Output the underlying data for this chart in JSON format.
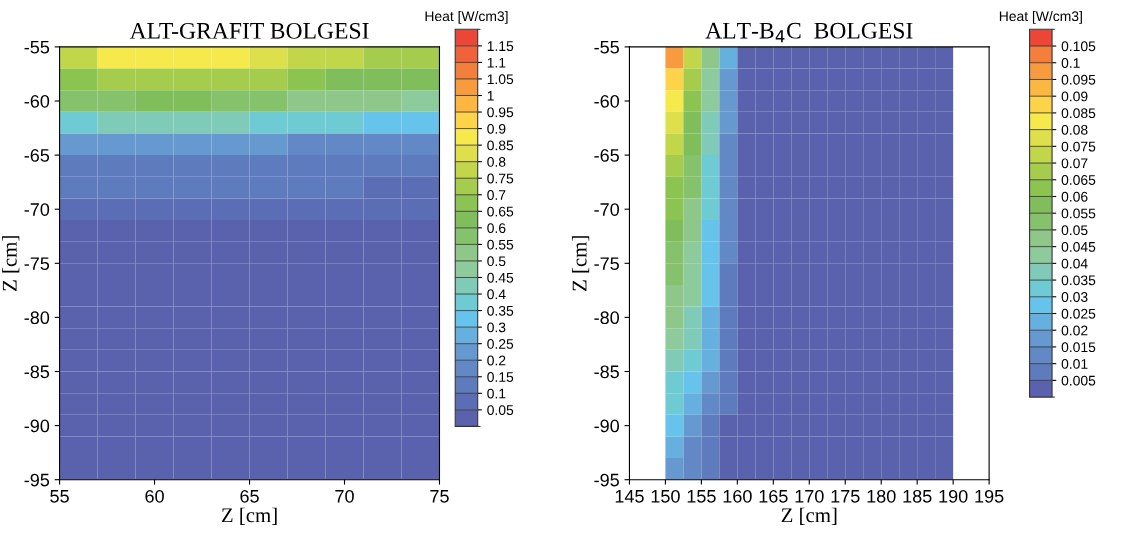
{
  "chart_data": [
    {
      "type": "heatmap",
      "title": "ALT-GRAFIT BOLGESI",
      "xlabel": "Z [cm]",
      "ylabel": "Z [cm]",
      "clabel": "Heat [W/cm3]",
      "x": [
        56,
        58,
        60,
        62,
        64,
        66,
        68,
        70,
        72,
        74
      ],
      "y": [
        -56,
        -58,
        -60,
        -62,
        -64,
        -66,
        -68,
        -70,
        -72,
        -74,
        -76,
        -78,
        -80,
        -82,
        -84,
        -86,
        -88,
        -90,
        -92,
        -94
      ],
      "xlim": [
        55,
        75
      ],
      "xticks": [
        55,
        60,
        65,
        70,
        75
      ],
      "ylim": [
        -95,
        -55
      ],
      "yticks": [
        -95,
        -90,
        -85,
        -80,
        -75,
        -70,
        -65,
        -60,
        -55
      ],
      "clim": [
        0,
        1.2
      ],
      "cticks": [
        0.05,
        0.1,
        0.15,
        0.2,
        0.25,
        0.3,
        0.35,
        0.4,
        0.45,
        0.5,
        0.55,
        0.6,
        0.65,
        0.7,
        0.75,
        0.8,
        0.85,
        0.9,
        0.95,
        1,
        1.05,
        1.1,
        1.15
      ],
      "colors": [
        "#5a62ad",
        "#5b6db5",
        "#5e7bbd",
        "#6289c6",
        "#6699d0",
        "#66b0e0",
        "#66c4ec",
        "#6ecbd4",
        "#80cbb8",
        "#8dcb9c",
        "#8ec789",
        "#86c26c",
        "#7fbe5a",
        "#8cc452",
        "#a5cc4c",
        "#c2d64a",
        "#dde04a",
        "#f6e94b",
        "#fdd34a",
        "#fcb743",
        "#f89b3e",
        "#f47e3b",
        "#f06239",
        "#ec4736"
      ],
      "cells": [
        [
          0.78,
          0.85,
          0.87,
          0.87,
          0.85,
          0.82,
          0.78,
          0.75,
          0.72,
          0.7
        ],
        [
          0.68,
          0.72,
          0.74,
          0.74,
          0.72,
          0.7,
          0.67,
          0.64,
          0.62,
          0.6
        ],
        [
          0.55,
          0.58,
          0.6,
          0.6,
          0.58,
          0.56,
          0.54,
          0.52,
          0.5,
          0.48
        ],
        [
          0.38,
          0.4,
          0.42,
          0.42,
          0.41,
          0.39,
          0.37,
          0.35,
          0.34,
          0.33
        ],
        [
          0.2,
          0.21,
          0.22,
          0.22,
          0.21,
          0.2,
          0.19,
          0.18,
          0.17,
          0.17
        ],
        [
          0.14,
          0.14,
          0.14,
          0.14,
          0.14,
          0.13,
          0.13,
          0.12,
          0.12,
          0.11
        ],
        [
          0.11,
          0.11,
          0.11,
          0.11,
          0.11,
          0.1,
          0.1,
          0.1,
          0.09,
          0.09
        ],
        [
          0.08,
          0.08,
          0.08,
          0.08,
          0.08,
          0.08,
          0.07,
          0.07,
          0.07,
          0.07
        ],
        [
          0.04,
          0.04,
          0.04,
          0.04,
          0.04,
          0.04,
          0.04,
          0.04,
          0.04,
          0.04
        ],
        [
          0.03,
          0.03,
          0.03,
          0.03,
          0.03,
          0.03,
          0.03,
          0.03,
          0.03,
          0.03
        ],
        [
          0.02,
          0.02,
          0.02,
          0.02,
          0.02,
          0.02,
          0.02,
          0.02,
          0.02,
          0.02
        ],
        [
          0.02,
          0.02,
          0.02,
          0.02,
          0.02,
          0.02,
          0.02,
          0.02,
          0.02,
          0.02
        ],
        [
          0.02,
          0.02,
          0.02,
          0.02,
          0.02,
          0.02,
          0.02,
          0.02,
          0.02,
          0.02
        ],
        [
          0.02,
          0.02,
          0.02,
          0.02,
          0.02,
          0.02,
          0.02,
          0.02,
          0.02,
          0.02
        ],
        [
          0.02,
          0.02,
          0.02,
          0.02,
          0.02,
          0.02,
          0.02,
          0.02,
          0.02,
          0.02
        ],
        [
          0.02,
          0.02,
          0.02,
          0.02,
          0.02,
          0.02,
          0.02,
          0.02,
          0.02,
          0.02
        ],
        [
          0.02,
          0.02,
          0.02,
          0.02,
          0.02,
          0.02,
          0.02,
          0.02,
          0.02,
          0.02
        ],
        [
          0.02,
          0.02,
          0.02,
          0.02,
          0.02,
          0.02,
          0.02,
          0.02,
          0.02,
          0.02
        ],
        [
          0.02,
          0.02,
          0.02,
          0.02,
          0.02,
          0.02,
          0.02,
          0.02,
          0.02,
          0.02
        ],
        [
          0.02,
          0.02,
          0.02,
          0.02,
          0.02,
          0.02,
          0.02,
          0.02,
          0.02,
          0.02
        ]
      ]
    },
    {
      "type": "heatmap",
      "title": "ALT-B$_{4}$C  BOLGESI",
      "xlabel": "Z [cm]",
      "ylabel": "Z [cm]",
      "clabel": "Heat [W/cm3]",
      "x": [
        146.25,
        148.75,
        151.25,
        153.75,
        156.25,
        158.75,
        161.25,
        163.75,
        166.25,
        168.75,
        171.25,
        173.75,
        176.25,
        178.75,
        181.25,
        183.75,
        186.25,
        188.75,
        191.25,
        193.75
      ],
      "y": [
        -56,
        -58,
        -60,
        -62,
        -64,
        -66,
        -68,
        -70,
        -72,
        -74,
        -76,
        -78,
        -80,
        -82,
        -84,
        -86,
        -88,
        -90,
        -92,
        -94
      ],
      "xlim": [
        145,
        195
      ],
      "xticks": [
        145,
        150,
        155,
        160,
        165,
        170,
        175,
        180,
        185,
        190,
        195
      ],
      "ylim": [
        -95,
        -55
      ],
      "yticks": [
        -95,
        -90,
        -85,
        -80,
        -75,
        -70,
        -65,
        -60,
        -55
      ],
      "clim": [
        0,
        0.11
      ],
      "cticks": [
        0.005,
        0.01,
        0.015,
        0.02,
        0.025,
        0.03,
        0.035,
        0.04,
        0.045,
        0.05,
        0.055,
        0.06,
        0.065,
        0.07,
        0.075,
        0.08,
        0.085,
        0.09,
        0.095,
        0.1,
        0.105
      ],
      "colors": [
        "#5a62ad",
        "#5e7bbd",
        "#6289c6",
        "#6699d0",
        "#66b0e0",
        "#66c4ec",
        "#6ecbd4",
        "#80cbb8",
        "#8dcb9c",
        "#8ec789",
        "#86c26c",
        "#7fbe5a",
        "#8cc452",
        "#a5cc4c",
        "#c2d64a",
        "#dde04a",
        "#f6e94b",
        "#fdd34a",
        "#fcb743",
        "#f89b3e",
        "#f47e3b",
        "#ec4736"
      ],
      "cells": [
        [
          null,
          null,
          0.095,
          0.07,
          0.045,
          0.02,
          0.003,
          0.003,
          0.003,
          0.003,
          0.003,
          0.003,
          0.003,
          0.003,
          0.003,
          0.003,
          0.003,
          0.003,
          null,
          null
        ],
        [
          null,
          null,
          0.088,
          0.066,
          0.042,
          0.018,
          0.003,
          0.003,
          0.003,
          0.003,
          0.003,
          0.003,
          0.003,
          0.003,
          0.003,
          0.003,
          0.003,
          0.003,
          null,
          null
        ],
        [
          null,
          null,
          0.082,
          0.062,
          0.04,
          0.016,
          0.003,
          0.003,
          0.003,
          0.003,
          0.003,
          0.003,
          0.003,
          0.003,
          0.003,
          0.003,
          0.003,
          0.003,
          null,
          null
        ],
        [
          null,
          null,
          0.077,
          0.059,
          0.038,
          0.015,
          0.003,
          0.003,
          0.003,
          0.003,
          0.003,
          0.003,
          0.003,
          0.003,
          0.003,
          0.003,
          0.003,
          0.003,
          null,
          null
        ],
        [
          null,
          null,
          0.072,
          0.056,
          0.036,
          0.014,
          0.003,
          0.003,
          0.003,
          0.003,
          0.003,
          0.003,
          0.003,
          0.003,
          0.003,
          0.003,
          0.003,
          0.003,
          null,
          null
        ],
        [
          null,
          null,
          0.068,
          0.053,
          0.034,
          0.013,
          0.003,
          0.003,
          0.003,
          0.003,
          0.003,
          0.003,
          0.003,
          0.003,
          0.003,
          0.003,
          0.003,
          0.003,
          null,
          null
        ],
        [
          null,
          null,
          0.064,
          0.05,
          0.032,
          0.012,
          0.003,
          0.003,
          0.003,
          0.003,
          0.003,
          0.003,
          0.003,
          0.003,
          0.003,
          0.003,
          0.003,
          0.003,
          null,
          null
        ],
        [
          null,
          null,
          0.06,
          0.048,
          0.03,
          0.011,
          0.003,
          0.003,
          0.003,
          0.003,
          0.003,
          0.003,
          0.003,
          0.003,
          0.003,
          0.003,
          0.003,
          0.003,
          null,
          null
        ],
        [
          null,
          null,
          0.057,
          0.046,
          0.028,
          0.01,
          0.003,
          0.003,
          0.003,
          0.003,
          0.003,
          0.003,
          0.003,
          0.003,
          0.003,
          0.003,
          0.003,
          0.003,
          null,
          null
        ],
        [
          null,
          null,
          0.054,
          0.044,
          0.027,
          0.01,
          0.003,
          0.003,
          0.003,
          0.003,
          0.003,
          0.003,
          0.003,
          0.003,
          0.003,
          0.003,
          0.003,
          0.003,
          null,
          null
        ],
        [
          null,
          null,
          0.051,
          0.042,
          0.026,
          0.009,
          0.003,
          0.003,
          0.003,
          0.003,
          0.003,
          0.003,
          0.003,
          0.003,
          0.003,
          0.003,
          0.003,
          0.003,
          null,
          null
        ],
        [
          null,
          null,
          0.048,
          0.04,
          0.025,
          0.009,
          0.003,
          0.003,
          0.003,
          0.003,
          0.003,
          0.003,
          0.003,
          0.003,
          0.003,
          0.003,
          0.003,
          0.003,
          null,
          null
        ],
        [
          null,
          null,
          0.045,
          0.038,
          0.024,
          0.008,
          0.003,
          0.003,
          0.003,
          0.003,
          0.003,
          0.003,
          0.003,
          0.003,
          0.003,
          0.003,
          0.003,
          0.003,
          null,
          null
        ],
        [
          null,
          null,
          0.042,
          0.036,
          0.023,
          0.008,
          0.003,
          0.003,
          0.003,
          0.003,
          0.003,
          0.003,
          0.003,
          0.003,
          0.003,
          0.003,
          0.003,
          0.003,
          null,
          null
        ],
        [
          null,
          null,
          0.039,
          0.034,
          0.022,
          0.007,
          0.003,
          0.003,
          0.003,
          0.003,
          0.003,
          0.003,
          0.003,
          0.003,
          0.003,
          0.003,
          0.003,
          0.003,
          null,
          null
        ],
        [
          null,
          null,
          0.034,
          0.027,
          0.016,
          0.006,
          0.003,
          0.003,
          0.003,
          0.003,
          0.003,
          0.003,
          0.003,
          0.003,
          0.003,
          0.003,
          0.003,
          0.003,
          null,
          null
        ],
        [
          null,
          null,
          0.03,
          0.022,
          0.012,
          0.005,
          0.003,
          0.003,
          0.003,
          0.003,
          0.003,
          0.003,
          0.003,
          0.003,
          0.003,
          0.003,
          0.003,
          0.003,
          null,
          null
        ],
        [
          null,
          null,
          0.026,
          0.018,
          0.009,
          0.004,
          0.003,
          0.003,
          0.003,
          0.003,
          0.003,
          0.003,
          0.003,
          0.003,
          0.003,
          0.003,
          0.003,
          0.003,
          null,
          null
        ],
        [
          null,
          null,
          0.022,
          0.014,
          0.007,
          0.004,
          0.003,
          0.003,
          0.003,
          0.003,
          0.003,
          0.003,
          0.003,
          0.003,
          0.003,
          0.003,
          0.003,
          0.003,
          null,
          null
        ],
        [
          null,
          null,
          0.018,
          0.011,
          0.005,
          0.003,
          0.003,
          0.003,
          0.003,
          0.003,
          0.003,
          0.003,
          0.003,
          0.003,
          0.003,
          0.003,
          0.003,
          0.003,
          null,
          null
        ]
      ]
    }
  ]
}
